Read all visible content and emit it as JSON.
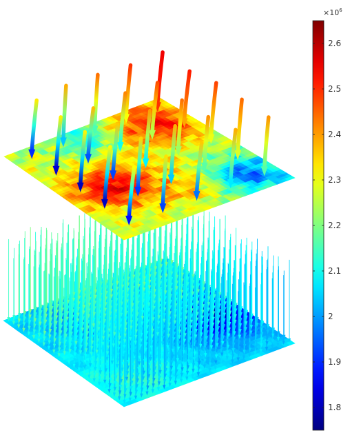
{
  "chart_data": {
    "type": "3d-surface-with-arrows",
    "title": "",
    "colormap": "jet",
    "colorbar": {
      "min": 1.75,
      "max": 2.65,
      "exponent_label": "×10",
      "exponent_power": "6",
      "ticks": [
        {
          "value": 2.6,
          "label": "2.6"
        },
        {
          "value": 2.5,
          "label": "2.5"
        },
        {
          "value": 2.4,
          "label": "2.4"
        },
        {
          "value": 2.3,
          "label": "2.3"
        },
        {
          "value": 2.2,
          "label": "2.2"
        },
        {
          "value": 2.1,
          "label": "2.1"
        },
        {
          "value": 2.0,
          "label": "2"
        },
        {
          "value": 1.9,
          "label": "1.9"
        },
        {
          "value": 1.8,
          "label": "1.8"
        }
      ]
    },
    "upper_surface": {
      "value_range": [
        1.8,
        2.62
      ],
      "arrow_grid": [
        5,
        5
      ]
    },
    "lower_surface": {
      "value_range": [
        1.78,
        2.2
      ],
      "arrow_grid": [
        30,
        24
      ]
    }
  }
}
